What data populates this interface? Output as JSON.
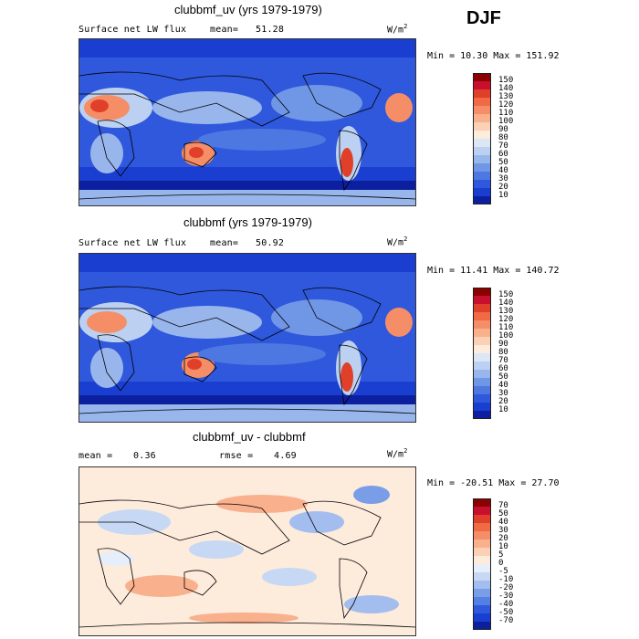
{
  "season": "DJF",
  "panels": [
    {
      "title": "clubbmf_uv (yrs 1979-1979)",
      "left_label": "Surface net LW flux",
      "stat_label": "mean=",
      "stat_value": "51.28",
      "units": "W/m",
      "units_exp": "2",
      "minmax": "Min =  10.30 Max = 151.92",
      "colorbar_labels": [
        "150",
        "140",
        "130",
        "120",
        "110",
        "100",
        "90",
        "80",
        "70",
        "60",
        "50",
        "40",
        "30",
        "20",
        "10"
      ],
      "colorbar_colors": [
        "#8b0000",
        "#c8102e",
        "#e0402a",
        "#ef6a45",
        "#f58e67",
        "#f9b08c",
        "#fbd0b5",
        "#fdebdc",
        "#dbe6f7",
        "#bcd1f2",
        "#99b6ec",
        "#7097e6",
        "#4d78e2",
        "#2f58dc",
        "#1a3fd0",
        "#0c1f9e"
      ]
    },
    {
      "title": "clubbmf (yrs 1979-1979)",
      "left_label": "Surface net LW flux",
      "stat_label": "mean=",
      "stat_value": "50.92",
      "units": "W/m",
      "units_exp": "2",
      "minmax": "Min =  11.41 Max = 140.72",
      "colorbar_labels": [
        "150",
        "140",
        "130",
        "120",
        "110",
        "100",
        "90",
        "80",
        "70",
        "60",
        "50",
        "40",
        "30",
        "20",
        "10"
      ],
      "colorbar_colors": [
        "#8b0000",
        "#c8102e",
        "#e0402a",
        "#ef6a45",
        "#f58e67",
        "#f9b08c",
        "#fbd0b5",
        "#fdebdc",
        "#dbe6f7",
        "#bcd1f2",
        "#99b6ec",
        "#7097e6",
        "#4d78e2",
        "#2f58dc",
        "#1a3fd0",
        "#0c1f9e"
      ]
    },
    {
      "title": "clubbmf_uv - clubbmf",
      "left_label": "mean =",
      "left_value": "0.36",
      "stat_label": "rmse =",
      "stat_value": "4.69",
      "units": "W/m",
      "units_exp": "2",
      "minmax": "Min = -20.51 Max =  27.70",
      "colorbar_labels": [
        "70",
        "50",
        "40",
        "30",
        "20",
        "10",
        "5",
        "0",
        "-5",
        "-10",
        "-20",
        "-30",
        "-40",
        "-50",
        "-70"
      ],
      "colorbar_colors": [
        "#8b0000",
        "#c8102e",
        "#e0402a",
        "#ef6a45",
        "#f58e67",
        "#f9b08c",
        "#fbd0b5",
        "#fdebdc",
        "#e6eefb",
        "#c7d8f4",
        "#a3bdee",
        "#7a9de8",
        "#5280e3",
        "#2f58dc",
        "#1a3fd0",
        "#0c1f9e"
      ]
    }
  ],
  "chart_data": [
    {
      "type": "heatmap",
      "title": "clubbmf_uv (yrs 1979-1979)",
      "variable": "Surface net LW flux",
      "season": "DJF",
      "units": "W/m2",
      "mean": 51.28,
      "min": 10.3,
      "max": 151.92,
      "levels": [
        10,
        20,
        30,
        40,
        50,
        60,
        70,
        80,
        90,
        100,
        110,
        120,
        130,
        140,
        150
      ]
    },
    {
      "type": "heatmap",
      "title": "clubbmf (yrs 1979-1979)",
      "variable": "Surface net LW flux",
      "season": "DJF",
      "units": "W/m2",
      "mean": 50.92,
      "min": 11.41,
      "max": 140.72,
      "levels": [
        10,
        20,
        30,
        40,
        50,
        60,
        70,
        80,
        90,
        100,
        110,
        120,
        130,
        140,
        150
      ]
    },
    {
      "type": "heatmap",
      "title": "clubbmf_uv - clubbmf",
      "season": "DJF",
      "units": "W/m2",
      "mean": 0.36,
      "rmse": 4.69,
      "min": -20.51,
      "max": 27.7,
      "levels": [
        -70,
        -50,
        -40,
        -30,
        -20,
        -10,
        -5,
        0,
        5,
        10,
        20,
        30,
        40,
        50,
        70
      ]
    }
  ]
}
